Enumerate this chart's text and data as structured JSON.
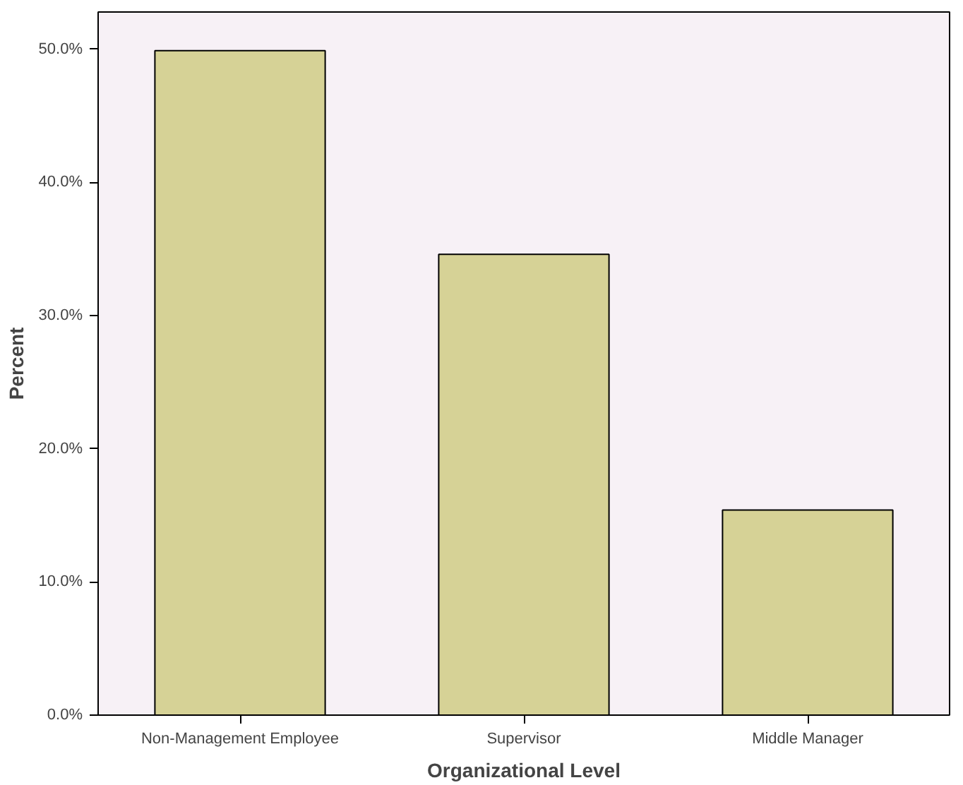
{
  "chart_data": {
    "type": "bar",
    "xlabel": "Organizational Level",
    "ylabel": "Percent",
    "categories": [
      "Non-Management Employee",
      "Supervisor",
      "Middle Manager"
    ],
    "values": [
      49.9,
      34.6,
      15.4
    ],
    "color": "#d6d296",
    "ylim": [
      0,
      52.8
    ],
    "yticks": [
      {
        "value": 0,
        "label": "0.0%"
      },
      {
        "value": 10,
        "label": "10.0%"
      },
      {
        "value": 20,
        "label": "20.0%"
      },
      {
        "value": 30,
        "label": "30.0%"
      },
      {
        "value": 40,
        "label": "40.0%"
      },
      {
        "value": 50,
        "label": "50.0%"
      }
    ],
    "grid": false
  }
}
